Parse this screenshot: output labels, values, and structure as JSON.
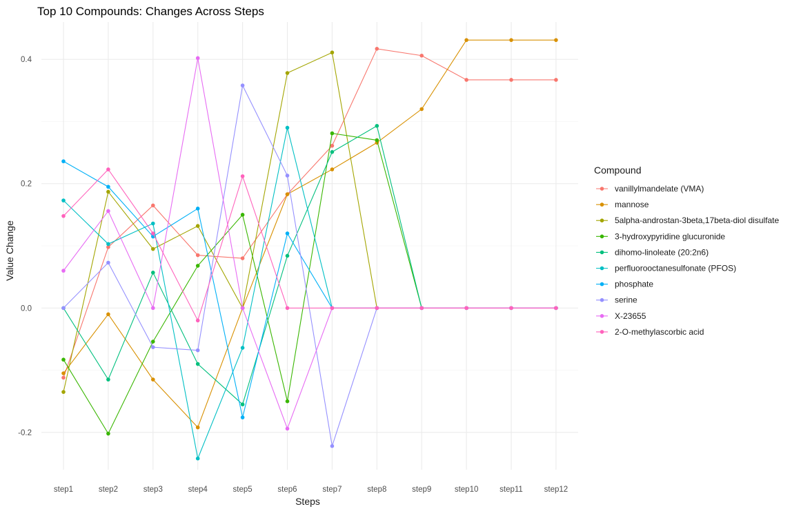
{
  "chart_data": {
    "type": "line",
    "title": "Top 10 Compounds: Changes Across Steps",
    "xlabel": "Steps",
    "ylabel": "Value Change",
    "categories": [
      "step1",
      "step2",
      "step3",
      "step4",
      "step5",
      "step6",
      "step7",
      "step8",
      "step9",
      "step10",
      "step11",
      "step12"
    ],
    "ylim": [
      -0.26,
      0.46
    ],
    "yticks": [
      -0.2,
      0.0,
      0.2,
      0.4
    ],
    "ytick_labels": [
      "-0.2",
      "0.0",
      "0.2",
      "0.4"
    ],
    "grid": true,
    "legend": {
      "title": "Compound",
      "position": "right"
    },
    "series": [
      {
        "name": "vanillylmandelate (VMA)",
        "color": "#F8766D",
        "values": [
          -0.112,
          0.098,
          0.165,
          0.085,
          0.08,
          0.183,
          0.261,
          0.417,
          0.406,
          0.367,
          0.367,
          0.367
        ]
      },
      {
        "name": "mannose",
        "color": "#D89000",
        "values": [
          -0.105,
          -0.01,
          -0.115,
          -0.192,
          0.0,
          0.183,
          0.223,
          0.266,
          0.32,
          0.431,
          0.431,
          0.431
        ]
      },
      {
        "name": "5alpha-androstan-3beta,17beta-diol disulfate",
        "color": "#A3A500",
        "values": [
          -0.135,
          0.187,
          0.095,
          0.132,
          0.0,
          0.378,
          0.411,
          0.0,
          0.0,
          0.0,
          0.0,
          0.0
        ]
      },
      {
        "name": "3-hydroxypyridine glucuronide",
        "color": "#39B600",
        "values": [
          -0.083,
          -0.202,
          -0.054,
          0.068,
          0.15,
          -0.15,
          0.281,
          0.27,
          0.0,
          0.0,
          0.0,
          0.0
        ]
      },
      {
        "name": "dihomo-linoleate (20:2n6)",
        "color": "#00BF7D",
        "values": [
          0.0,
          -0.115,
          0.057,
          -0.09,
          -0.155,
          0.084,
          0.251,
          0.293,
          0.0,
          0.0,
          0.0,
          0.0
        ]
      },
      {
        "name": "perfluorooctanesulfonate (PFOS)",
        "color": "#00BFC4",
        "values": [
          0.173,
          0.103,
          0.136,
          -0.242,
          -0.064,
          0.29,
          0.0,
          0.0,
          0.0,
          0.0,
          0.0,
          0.0
        ]
      },
      {
        "name": "phosphate",
        "color": "#00B0F6",
        "values": [
          0.236,
          0.195,
          0.115,
          0.16,
          -0.176,
          0.12,
          0.0,
          0.0,
          0.0,
          0.0,
          0.0,
          0.0
        ]
      },
      {
        "name": "serine",
        "color": "#9590FF",
        "values": [
          0.0,
          0.073,
          -0.063,
          -0.068,
          0.358,
          0.213,
          -0.222,
          0.0,
          0.0,
          0.0,
          0.0,
          0.0
        ]
      },
      {
        "name": "X-23655",
        "color": "#E76BF3",
        "values": [
          0.06,
          0.156,
          0.0,
          0.402,
          0.0,
          -0.194,
          0.0,
          0.0,
          0.0,
          0.0,
          0.0,
          0.0
        ]
      },
      {
        "name": "2-O-methylascorbic acid",
        "color": "#FF62BC",
        "values": [
          0.148,
          0.223,
          0.12,
          -0.02,
          0.212,
          0.0,
          0.0,
          0.0,
          0.0,
          0.0,
          0.0,
          0.0
        ]
      }
    ]
  }
}
